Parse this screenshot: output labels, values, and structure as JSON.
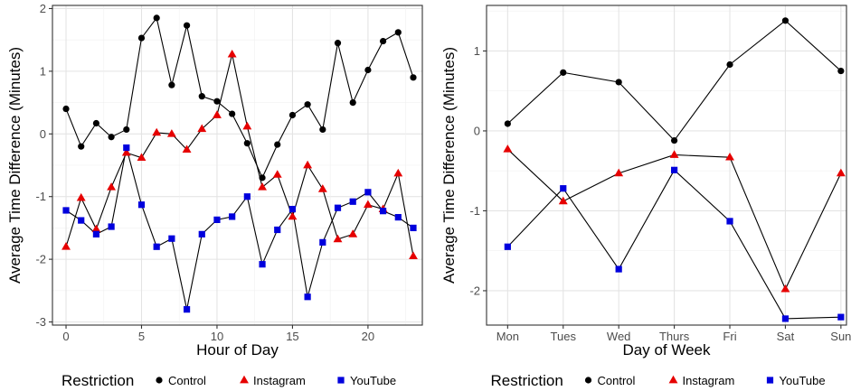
{
  "colors": {
    "Control": "#000000",
    "Instagram": "#e60000",
    "YouTube": "#0000dd"
  },
  "legend": {
    "title": "Restriction",
    "entries": [
      {
        "label": "Control",
        "shape": "circle"
      },
      {
        "label": "Instagram",
        "shape": "triangle"
      },
      {
        "label": "YouTube",
        "shape": "square"
      }
    ]
  },
  "chart_data": [
    {
      "type": "line",
      "xlabel": "Hour of Day",
      "ylabel": "Average Time Difference (Minutes)",
      "x": [
        0,
        1,
        2,
        3,
        4,
        5,
        6,
        7,
        8,
        9,
        10,
        11,
        12,
        13,
        14,
        15,
        16,
        17,
        18,
        19,
        20,
        21,
        22,
        23
      ],
      "xlim": [
        -0.9,
        23.6
      ],
      "ylim": [
        -3.05,
        2.05
      ],
      "xticks": [
        0,
        5,
        10,
        15,
        20
      ],
      "yticks": [
        -3,
        -2,
        -1,
        0,
        1,
        2
      ],
      "grid": true,
      "legend_position": "bottom",
      "series": [
        {
          "name": "Control",
          "shape": "circle",
          "values": [
            0.4,
            -0.2,
            0.17,
            -0.05,
            0.07,
            1.53,
            1.85,
            0.78,
            1.73,
            0.6,
            0.52,
            0.32,
            -0.15,
            -0.7,
            -0.17,
            0.3,
            0.47,
            0.07,
            1.45,
            0.5,
            1.02,
            1.48,
            1.62,
            0.9
          ]
        },
        {
          "name": "Instagram",
          "shape": "triangle",
          "values": [
            -1.8,
            -1.02,
            -1.52,
            -0.85,
            -0.3,
            -0.38,
            0.02,
            0.0,
            -0.25,
            0.08,
            0.3,
            1.27,
            0.12,
            -0.85,
            -0.65,
            -1.32,
            -0.5,
            -0.88,
            -1.68,
            -1.6,
            -1.13,
            -1.2,
            -0.63,
            -1.95
          ]
        },
        {
          "name": "YouTube",
          "shape": "square",
          "values": [
            -1.22,
            -1.38,
            -1.6,
            -1.48,
            -0.22,
            -1.13,
            -1.8,
            -1.67,
            -2.8,
            -1.6,
            -1.37,
            -1.32,
            -1.0,
            -2.08,
            -1.53,
            -1.2,
            -2.6,
            -1.73,
            -1.18,
            -1.08,
            -0.93,
            -1.23,
            -1.33,
            -1.5
          ]
        }
      ]
    },
    {
      "type": "line",
      "xlabel": "Day of Week",
      "ylabel": "Average Time Difference (Minutes)",
      "categories": [
        "Mon",
        "Tues",
        "Wed",
        "Thurs",
        "Fri",
        "Sat",
        "Sun"
      ],
      "ylim": [
        -2.43,
        1.57
      ],
      "yticks": [
        -2,
        -1,
        0,
        1
      ],
      "grid": true,
      "legend_position": "bottom",
      "series": [
        {
          "name": "Control",
          "shape": "circle",
          "values": [
            0.09,
            0.73,
            0.61,
            -0.12,
            0.83,
            1.38,
            0.75
          ]
        },
        {
          "name": "Instagram",
          "shape": "triangle",
          "values": [
            -0.23,
            -0.88,
            -0.53,
            -0.3,
            -0.33,
            -1.98,
            -0.53
          ]
        },
        {
          "name": "YouTube",
          "shape": "square",
          "values": [
            -1.45,
            -0.72,
            -1.73,
            -0.49,
            -1.13,
            -2.35,
            -2.33
          ]
        }
      ]
    }
  ]
}
